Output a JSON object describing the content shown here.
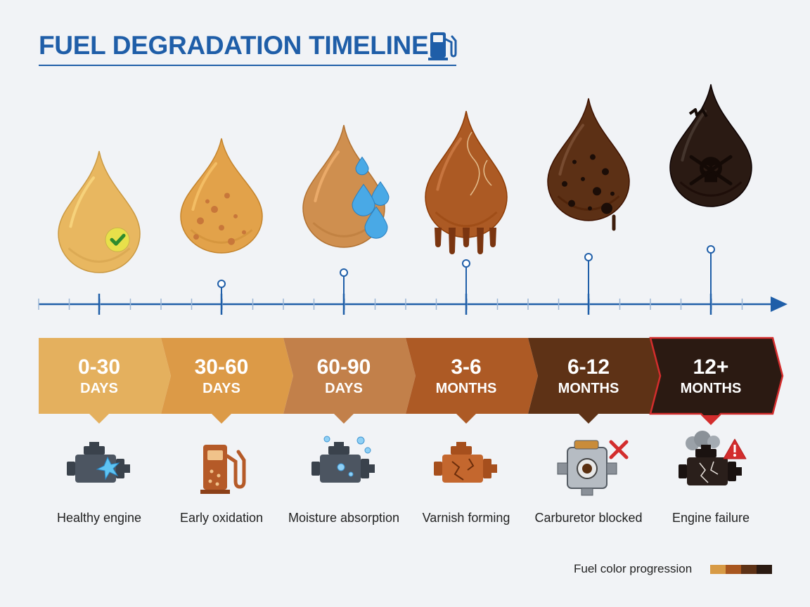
{
  "title": "FUEL DEGRADATION TIMELINE",
  "title_icon": "fuel-pump-icon",
  "stages": [
    {
      "range": "0-30",
      "unit": "DAYS",
      "caption": "Healthy engine",
      "drop_color": "#e8b760",
      "band_color": "#e4b05e",
      "drop_icon": "check-icon",
      "engine_icon": "healthy-engine-icon"
    },
    {
      "range": "30-60",
      "unit": "DAYS",
      "caption": "Early oxidation",
      "drop_color": "#e2a24a",
      "band_color": "#dc9a47",
      "drop_icon": "specks-icon",
      "engine_icon": "fuel-pump-icon"
    },
    {
      "range": "60-90",
      "unit": "DAYS",
      "caption": "Moisture absorption",
      "drop_color": "#cf8f4f",
      "band_color": "#c2804a",
      "drop_icon": "water-drops-icon",
      "engine_icon": "wet-engine-icon"
    },
    {
      "range": "3-6",
      "unit": "MONTHS",
      "caption": "Varnish forming",
      "drop_color": "#ac5a24",
      "band_color": "#ad5a25",
      "drop_icon": "varnish-drip-icon",
      "engine_icon": "cracked-engine-icon"
    },
    {
      "range": "6-12",
      "unit": "MONTHS",
      "caption": "Carburetor blocked",
      "drop_color": "#5c3015",
      "band_color": "#5e3216",
      "drop_icon": "sludge-icon",
      "engine_icon": "carburetor-icon"
    },
    {
      "range": "12+",
      "unit": "MONTHS",
      "caption": "Engine failure",
      "drop_color": "#2a1a13",
      "band_color": "#2b1a12",
      "drop_icon": "skull-icon",
      "engine_icon": "failed-engine-icon"
    }
  ],
  "alert_icons": [
    "x-icon",
    "warning-icon"
  ],
  "legend": {
    "label": "Fuel color progression",
    "colors": [
      "#d79a45",
      "#a8561f",
      "#5e3216",
      "#2b1a12"
    ]
  },
  "colors": {
    "title": "#1f5ea8",
    "axis": "#1f5ea8",
    "failure_border": "#d32d2d",
    "background": "#f1f3f6"
  }
}
